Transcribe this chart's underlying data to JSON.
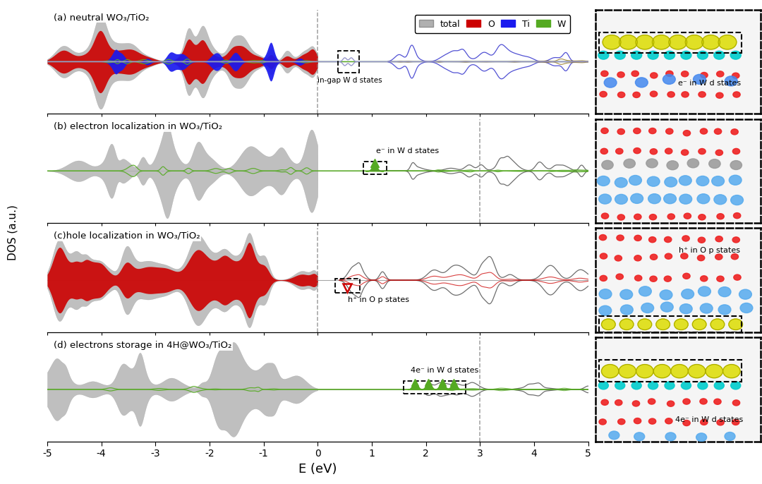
{
  "xlabel": "E (eV)",
  "ylabel": "DOS (a.u.)",
  "xlim": [
    -5,
    5
  ],
  "xticks": [
    -5,
    -4,
    -3,
    -2,
    -1,
    0,
    1,
    2,
    3,
    4,
    5
  ],
  "panel_titles": [
    "(a) neutral WO₃/TiO₂",
    "(b) electron localization in WO₃/TiO₂",
    "(c)hole localization in WO₃/TiO₂",
    "(d) electrons storage in 4H@WO₃/TiO₂"
  ],
  "legend_labels": [
    "total",
    "O",
    "Ti",
    "W"
  ],
  "color_total": "#b0b0b0",
  "color_O": "#cc0000",
  "color_Ti": "#1a1aee",
  "color_W": "#55aa22",
  "color_W_line": "#886600",
  "color_Ti_line": "#3333cc",
  "annotation_a": "in-gap W d states",
  "annotation_b": "e⁻ in W d states",
  "annotation_c": "h⁺ in O p states",
  "annotation_d": "4e⁻ in W d states",
  "vline_color": "#888888",
  "seed_a": 101,
  "seed_b": 202,
  "seed_c": 303,
  "seed_d": 404
}
